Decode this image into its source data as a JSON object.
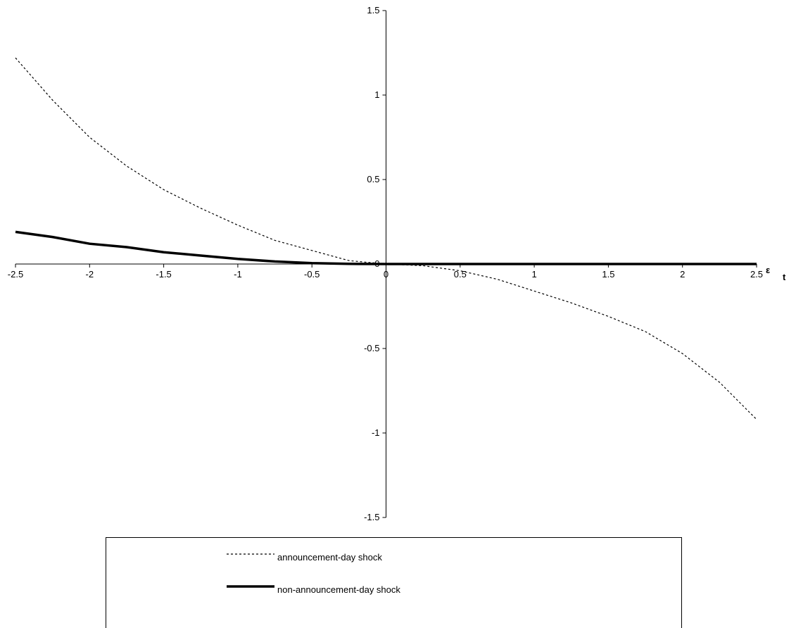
{
  "chart_data": {
    "type": "line",
    "x_label": {
      "symbol": "ε",
      "subscript": "t"
    },
    "x": [
      -2.5,
      -2.25,
      -2,
      -1.75,
      -1.5,
      -1.25,
      -1,
      -0.75,
      -0.5,
      -0.25,
      0,
      0.25,
      0.5,
      0.75,
      1,
      1.25,
      1.5,
      1.75,
      2,
      2.25,
      2.5
    ],
    "series": [
      {
        "name": "announcement-day shock",
        "color": "#000000",
        "dashed": true,
        "values": [
          1.22,
          0.97,
          0.75,
          0.58,
          0.44,
          0.33,
          0.23,
          0.14,
          0.08,
          0.02,
          0,
          -0.01,
          -0.04,
          -0.09,
          -0.16,
          -0.23,
          -0.31,
          -0.4,
          -0.53,
          -0.7,
          -0.92
        ]
      },
      {
        "name": "non-announcement-day shock",
        "color": "#000000",
        "dashed": false,
        "values": [
          0.19,
          0.16,
          0.12,
          0.1,
          0.07,
          0.05,
          0.03,
          0.015,
          0.005,
          0.001,
          0,
          0,
          0,
          0,
          0,
          0,
          0,
          0,
          0,
          0,
          0
        ]
      }
    ],
    "xlim": [
      -2.5,
      2.5
    ],
    "xticks": [
      -2.5,
      -2,
      -1.5,
      -1,
      -0.5,
      0,
      0.5,
      1,
      1.5,
      2,
      2.5
    ],
    "ylim": [
      -1.5,
      1.5
    ],
    "yticks": [
      -1.5,
      -1,
      -0.5,
      0,
      0.5,
      1,
      1.5
    ],
    "grid": false,
    "legend": "bottom"
  }
}
